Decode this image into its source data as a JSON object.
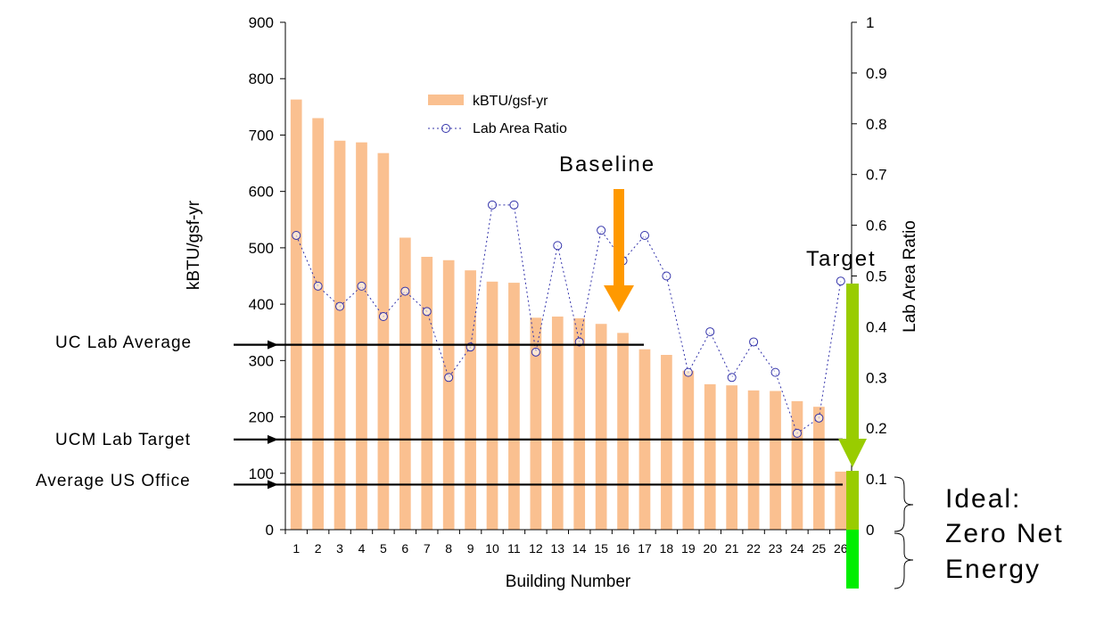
{
  "chart_data": {
    "type": "bar",
    "xlabel": "Building Number",
    "ylabel": "kBTU/gsf-yr",
    "y2label": "Lab Area Ratio",
    "categories": [
      "1",
      "2",
      "3",
      "4",
      "5",
      "6",
      "7",
      "8",
      "9",
      "10",
      "11",
      "12",
      "13",
      "14",
      "15",
      "16",
      "17",
      "18",
      "19",
      "20",
      "21",
      "22",
      "23",
      "24",
      "25",
      "26"
    ],
    "ylim": [
      0,
      900
    ],
    "yticks": [
      "0",
      "100",
      "200",
      "300",
      "400",
      "500",
      "600",
      "700",
      "800",
      "900"
    ],
    "y2lim": [
      0,
      1
    ],
    "y2ticks": [
      "0",
      "0.1",
      "0.2",
      "0.3",
      "0.4",
      "0.5",
      "0.6",
      "0.7",
      "0.8",
      "0.9",
      "1"
    ],
    "series": [
      {
        "name": "kBTU/gsf-yr",
        "type": "bar",
        "axis": "left",
        "color": "#FAC090",
        "values": [
          763,
          730,
          690,
          687,
          668,
          518,
          484,
          478,
          460,
          440,
          438,
          376,
          378,
          375,
          365,
          349,
          320,
          310,
          282,
          258,
          256,
          247,
          246,
          228,
          218,
          103
        ]
      },
      {
        "name": "Lab Area Ratio",
        "type": "line",
        "axis": "right",
        "color": "#3333AA",
        "values": [
          0.58,
          0.48,
          0.44,
          0.48,
          0.42,
          0.47,
          0.43,
          0.3,
          0.36,
          0.64,
          0.64,
          0.35,
          0.56,
          0.37,
          0.59,
          0.53,
          0.58,
          0.5,
          0.31,
          0.39,
          0.3,
          0.37,
          0.31,
          0.19,
          0.22,
          0.49
        ]
      }
    ],
    "legend": "top-left",
    "annotations": {
      "baseline": "Baseline",
      "target": "Target",
      "uc_lab_average": "UC Lab Average",
      "ucm_lab_target": "UCM Lab Target",
      "average_us_office": "Average US Office",
      "ideal_line1": "Ideal:",
      "ideal_line2": "Zero Net",
      "ideal_line3": "Energy"
    },
    "reference_lines": {
      "uc_lab_average": 328,
      "ucm_lab_target": 160,
      "average_us_office": 80
    },
    "colors": {
      "baseline_arrow": "#FF9900",
      "target_arrow": "#99CC00",
      "zero_net_bar": "#00EE00"
    }
  }
}
